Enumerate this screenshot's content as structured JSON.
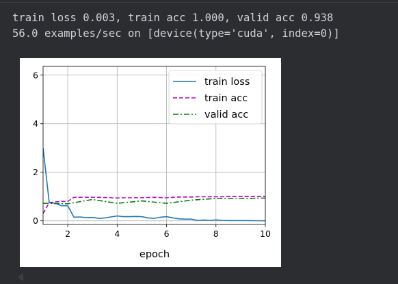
{
  "output_lines": [
    "train loss 0.003, train acc 1.000, valid acc 0.938",
    "56.0 examples/sec on [device(type='cuda', index=0)]"
  ],
  "chart_data": {
    "type": "line",
    "xlabel": "epoch",
    "xlim": [
      1,
      10
    ],
    "ylim": [
      -0.15,
      6.36
    ],
    "xticks": [
      2,
      4,
      6,
      8,
      10
    ],
    "yticks": [
      0,
      2,
      4,
      6
    ],
    "grid": true,
    "legend": "upper right",
    "series": [
      {
        "name": "train loss",
        "color": "#1f77b4",
        "linestyle": "solid",
        "x": [
          1,
          1.25,
          1.5,
          1.75,
          2,
          2.25,
          2.5,
          2.75,
          3,
          3.25,
          3.5,
          3.75,
          4,
          4.25,
          4.5,
          4.75,
          5,
          5.25,
          5.5,
          5.75,
          6,
          6.25,
          6.5,
          6.75,
          7,
          7.25,
          7.5,
          7.75,
          8,
          8.25,
          8.5,
          8.75,
          9,
          9.25,
          9.5,
          9.75,
          10
        ],
        "values": [
          3.0,
          0.75,
          0.72,
          0.62,
          0.62,
          0.15,
          0.16,
          0.13,
          0.14,
          0.1,
          0.12,
          0.16,
          0.2,
          0.17,
          0.17,
          0.18,
          0.17,
          0.12,
          0.1,
          0.15,
          0.17,
          0.12,
          0.08,
          0.07,
          0.07,
          0.02,
          0.03,
          0.02,
          0.04,
          0.02,
          0.01,
          0.01,
          0.01,
          0.01,
          0.005,
          0.004,
          0.003
        ]
      },
      {
        "name": "train acc",
        "color": "#bf00bf",
        "linestyle": "dashed",
        "x": [
          1,
          1.25,
          1.5,
          1.75,
          2,
          2.25,
          2.5,
          2.75,
          3,
          3.25,
          3.5,
          3.75,
          4,
          4.25,
          4.5,
          4.75,
          5,
          5.25,
          5.5,
          5.75,
          6,
          6.25,
          6.5,
          6.75,
          7,
          7.25,
          7.5,
          7.75,
          8,
          8.25,
          8.5,
          8.75,
          9,
          9.25,
          9.5,
          9.75,
          10
        ],
        "values": [
          0.3,
          0.75,
          0.78,
          0.8,
          0.8,
          0.97,
          0.97,
          0.97,
          0.97,
          0.97,
          0.96,
          0.95,
          0.94,
          0.95,
          0.95,
          0.95,
          0.95,
          0.96,
          0.97,
          0.96,
          0.95,
          0.97,
          0.98,
          0.98,
          0.98,
          0.99,
          0.99,
          0.99,
          0.99,
          0.99,
          1.0,
          1.0,
          1.0,
          1.0,
          1.0,
          1.0,
          1.0
        ]
      },
      {
        "name": "valid acc",
        "color": "#008000",
        "linestyle": "dashdot",
        "x": [
          1,
          2,
          3,
          4,
          5,
          6,
          7,
          8,
          9,
          10
        ],
        "values": [
          0.72,
          0.7,
          0.88,
          0.72,
          0.82,
          0.72,
          0.85,
          0.92,
          0.92,
          0.938
        ]
      }
    ]
  }
}
